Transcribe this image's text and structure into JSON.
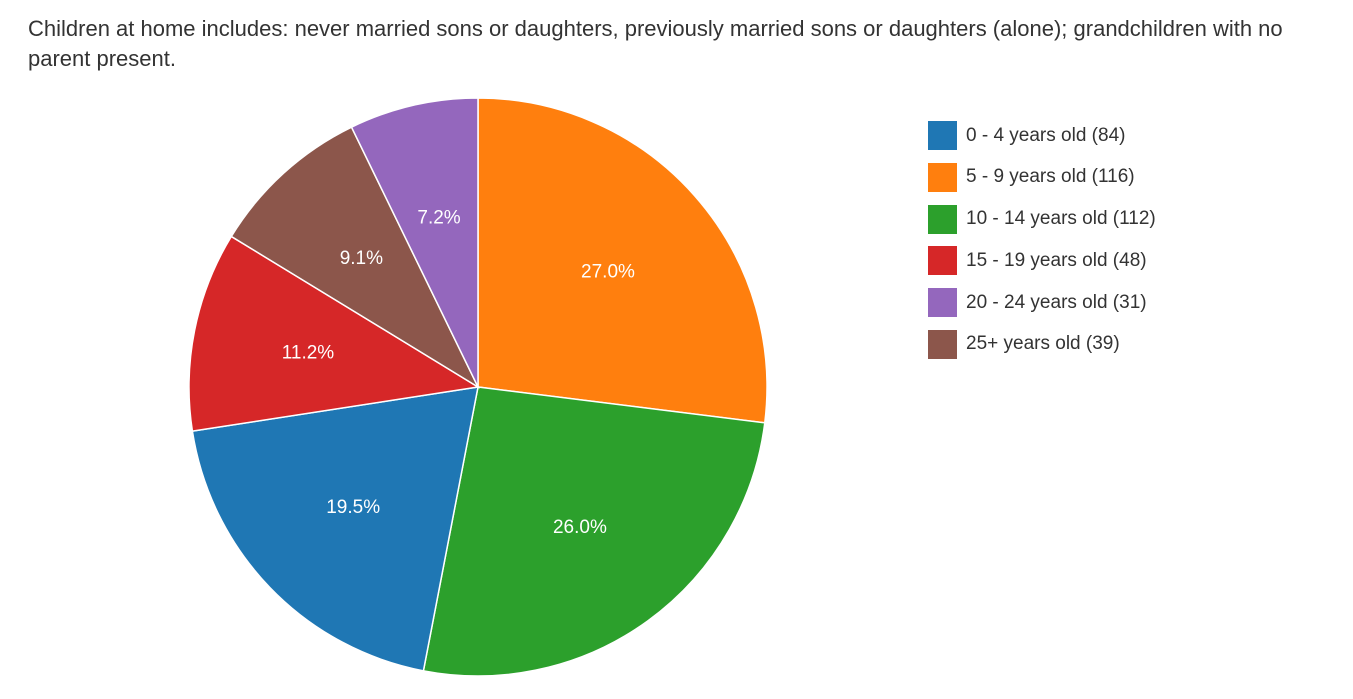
{
  "title": "Children at home includes: never married sons or daughters, previously married sons or daughters (alone); grandchildren with no parent present.",
  "chart_data": {
    "type": "pie",
    "title": "Children at home includes: never married sons or daughters, previously married sons or daughters (alone); grandchildren with no parent present.",
    "legend_position": "right",
    "start": "top, clockwise",
    "slices": [
      {
        "label": "0 - 4 years old (84)",
        "value": 84,
        "percent_label": "19.5%",
        "color": "#1f77b4"
      },
      {
        "label": "5 - 9 years old (116)",
        "value": 116,
        "percent_label": "27.0%",
        "color": "#ff7f0e"
      },
      {
        "label": "10 - 14 years old (112)",
        "value": 112,
        "percent_label": "26.0%",
        "color": "#2ca02c"
      },
      {
        "label": "15 - 19 years old (48)",
        "value": 48,
        "percent_label": "11.2%",
        "color": "#d62728"
      },
      {
        "label": "20 - 24 years old (31)",
        "value": 31,
        "percent_label": "7.2%",
        "color": "#9467bd"
      },
      {
        "label": "25+ years old (39)",
        "value": 39,
        "percent_label": "9.1%",
        "color": "#8c564b"
      }
    ],
    "draw_order": [
      1,
      2,
      0,
      3,
      5,
      4
    ]
  }
}
